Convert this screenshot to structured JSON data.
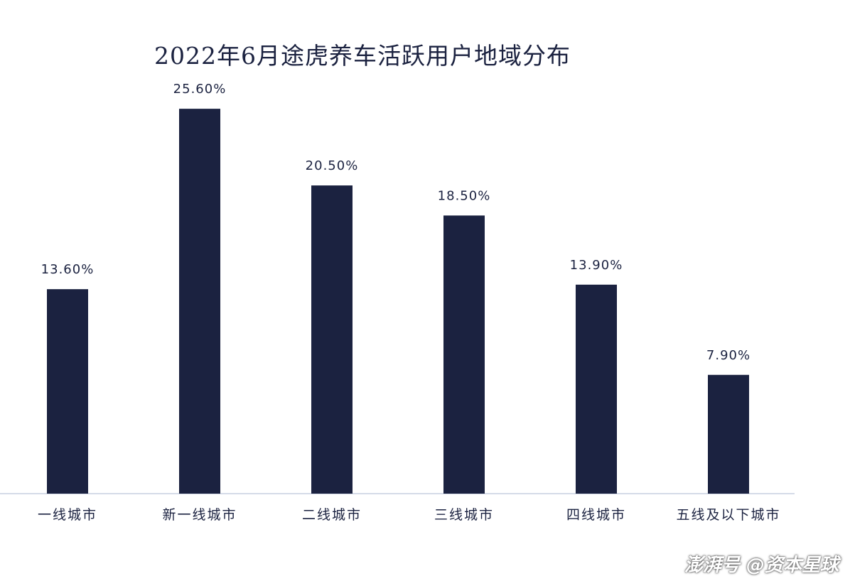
{
  "chart_data": {
    "type": "bar",
    "title": "2022年6月途虎养车活跃用户地域分布",
    "categories": [
      "一线城市",
      "新一线城市",
      "二线城市",
      "三线城市",
      "四线城市",
      "五线及以下城市"
    ],
    "values": [
      13.6,
      25.6,
      20.5,
      18.5,
      13.9,
      7.9
    ],
    "data_labels": [
      "13.60%",
      "25.60%",
      "20.50%",
      "18.50%",
      "13.90%",
      "7.90%"
    ],
    "unit": "%",
    "ylim": [
      0,
      30
    ],
    "grid": false,
    "legend": "none",
    "bar_color": "#1b2240"
  },
  "watermark": "澎湃号 @资本星球"
}
